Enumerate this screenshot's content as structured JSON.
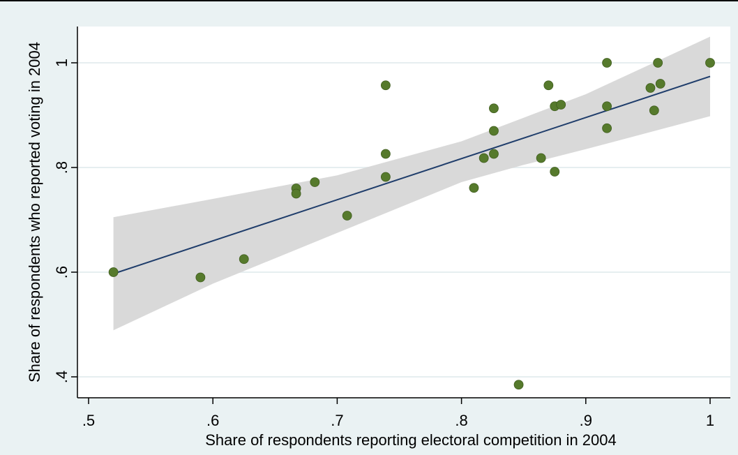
{
  "chart_data": {
    "type": "scatter",
    "title": "",
    "xlabel": "Share of respondents reporting electoral competition in 2004",
    "ylabel": "Share of respondents who reported voting in 2004",
    "xlim": [
      0.5,
      1.0
    ],
    "ylim": [
      0.365,
      1.07
    ],
    "xticks": [
      0.5,
      0.6,
      0.7,
      0.8,
      0.9,
      1.0
    ],
    "xtick_labels": [
      ".5",
      ".6",
      ".7",
      ".8",
      ".9",
      "1"
    ],
    "yticks": [
      0.4,
      0.6,
      0.8,
      1.0
    ],
    "ytick_labels": [
      ".4",
      ".6",
      ".8",
      "1"
    ],
    "grid": "horizontal",
    "legend": "none",
    "colors": {
      "background": "#eaf2f3",
      "plot_background": "#ffffff",
      "points": "#567a2c",
      "fit_line": "#1f3d6b",
      "confidence_band": "#d9d9d9",
      "grid": "#e6eef0"
    },
    "points": [
      {
        "x": 0.52,
        "y": 0.6
      },
      {
        "x": 0.59,
        "y": 0.59
      },
      {
        "x": 0.625,
        "y": 0.625
      },
      {
        "x": 0.667,
        "y": 0.76
      },
      {
        "x": 0.667,
        "y": 0.75
      },
      {
        "x": 0.682,
        "y": 0.772
      },
      {
        "x": 0.708,
        "y": 0.708
      },
      {
        "x": 0.739,
        "y": 0.957
      },
      {
        "x": 0.739,
        "y": 0.826
      },
      {
        "x": 0.739,
        "y": 0.782
      },
      {
        "x": 0.81,
        "y": 0.761
      },
      {
        "x": 0.818,
        "y": 0.818
      },
      {
        "x": 0.826,
        "y": 0.913
      },
      {
        "x": 0.826,
        "y": 0.87
      },
      {
        "x": 0.826,
        "y": 0.826
      },
      {
        "x": 0.846,
        "y": 0.385
      },
      {
        "x": 0.864,
        "y": 0.818
      },
      {
        "x": 0.87,
        "y": 0.957
      },
      {
        "x": 0.875,
        "y": 0.917
      },
      {
        "x": 0.875,
        "y": 0.792
      },
      {
        "x": 0.88,
        "y": 0.92
      },
      {
        "x": 0.917,
        "y": 1.0
      },
      {
        "x": 0.917,
        "y": 0.917
      },
      {
        "x": 0.917,
        "y": 0.875
      },
      {
        "x": 0.952,
        "y": 0.952
      },
      {
        "x": 0.955,
        "y": 0.909
      },
      {
        "x": 0.958,
        "y": 1.0
      },
      {
        "x": 0.96,
        "y": 0.96
      },
      {
        "x": 1.0,
        "y": 1.0
      }
    ],
    "fit_line": {
      "x": [
        0.52,
        1.0
      ],
      "y": [
        0.597,
        0.974
      ]
    },
    "confidence_band": {
      "x": [
        0.52,
        0.6,
        0.7,
        0.8,
        0.85,
        0.9,
        1.0
      ],
      "upper": [
        0.705,
        0.74,
        0.785,
        0.85,
        0.895,
        0.94,
        1.05
      ],
      "lower": [
        0.489,
        0.578,
        0.675,
        0.772,
        0.805,
        0.835,
        0.898
      ]
    }
  }
}
